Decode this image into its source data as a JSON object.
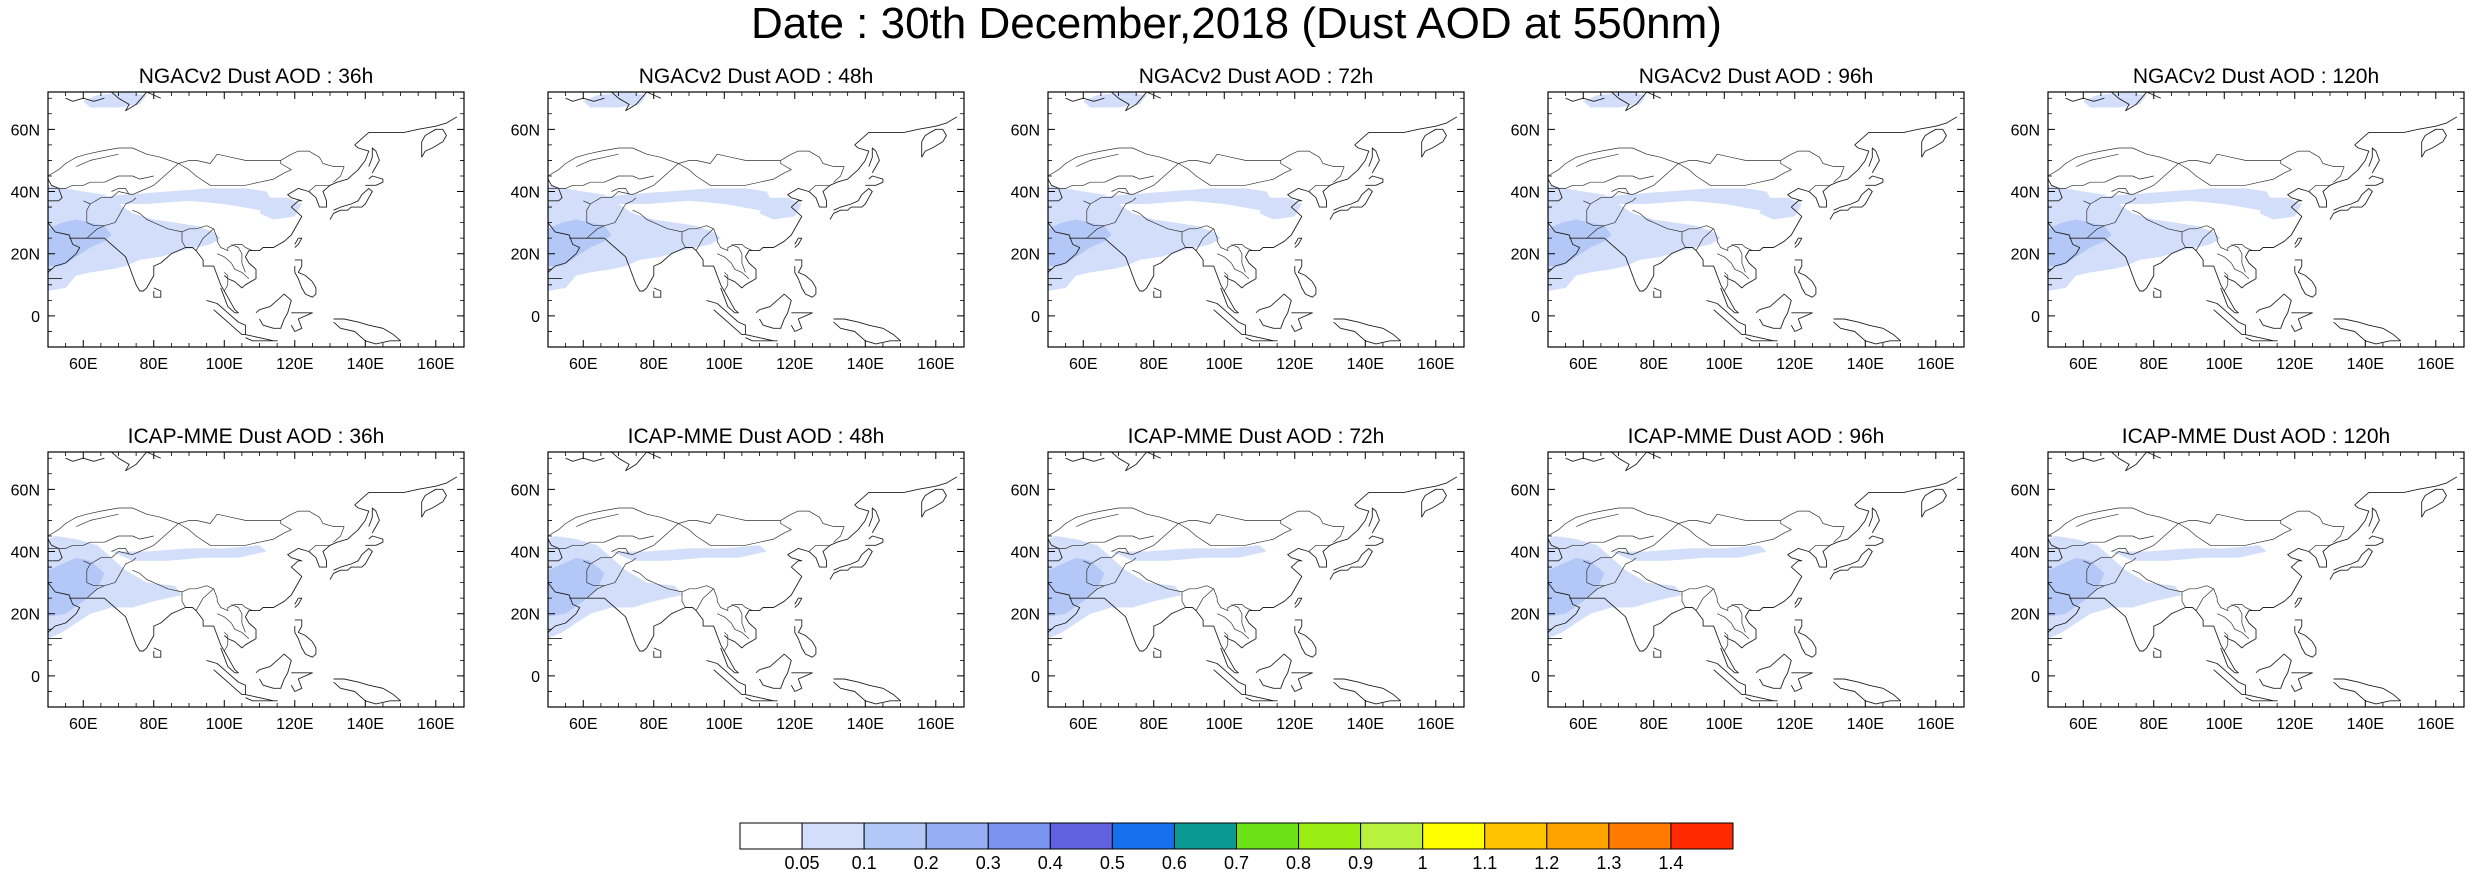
{
  "figure": {
    "title": "Date : 30th December,2018 (Dust AOD at 550nm)"
  },
  "panels": [
    {
      "title": "NGACv2 Dust AOD : 36h",
      "model": "NGACv2",
      "lead": "36h"
    },
    {
      "title": "NGACv2 Dust AOD : 48h",
      "model": "NGACv2",
      "lead": "48h"
    },
    {
      "title": "NGACv2 Dust AOD : 72h",
      "model": "NGACv2",
      "lead": "72h"
    },
    {
      "title": "NGACv2 Dust AOD : 96h",
      "model": "NGACv2",
      "lead": "96h"
    },
    {
      "title": "NGACv2 Dust AOD : 120h",
      "model": "NGACv2",
      "lead": "120h"
    },
    {
      "title": "ICAP-MME Dust AOD : 36h",
      "model": "ICAP-MME",
      "lead": "36h"
    },
    {
      "title": "ICAP-MME Dust AOD : 48h",
      "model": "ICAP-MME",
      "lead": "48h"
    },
    {
      "title": "ICAP-MME Dust AOD : 72h",
      "model": "ICAP-MME",
      "lead": "72h"
    },
    {
      "title": "ICAP-MME Dust AOD : 96h",
      "model": "ICAP-MME",
      "lead": "96h"
    },
    {
      "title": "ICAP-MME Dust AOD : 120h",
      "model": "ICAP-MME",
      "lead": "120h"
    }
  ],
  "axes": {
    "lon_range": [
      50,
      168
    ],
    "lat_range": [
      -10,
      72
    ],
    "x_ticks": [
      {
        "value": 60,
        "label": "60E"
      },
      {
        "value": 80,
        "label": "80E"
      },
      {
        "value": 100,
        "label": "100E"
      },
      {
        "value": 120,
        "label": "120E"
      },
      {
        "value": 140,
        "label": "140E"
      },
      {
        "value": 160,
        "label": "160E"
      }
    ],
    "y_ticks": [
      {
        "value": 0,
        "label": "0"
      },
      {
        "value": 20,
        "label": "20N"
      },
      {
        "value": 40,
        "label": "40N"
      },
      {
        "value": 60,
        "label": "60N"
      }
    ]
  },
  "colorbar": {
    "labels": [
      "0.05",
      "0.1",
      "0.2",
      "0.3",
      "0.4",
      "0.5",
      "0.6",
      "0.7",
      "0.8",
      "0.9",
      "1",
      "1.1",
      "1.2",
      "1.3",
      "1.4"
    ],
    "colors": [
      "#ffffff",
      "#d3defa",
      "#b4c8f8",
      "#96aff4",
      "#7a93ef",
      "#6062e1",
      "#1670ee",
      "#0a9a93",
      "#6ae217",
      "#99ef13",
      "#b8f23f",
      "#ffff00",
      "#ffc300",
      "#ffa200",
      "#ff7a00",
      "#ff2a00"
    ]
  }
}
